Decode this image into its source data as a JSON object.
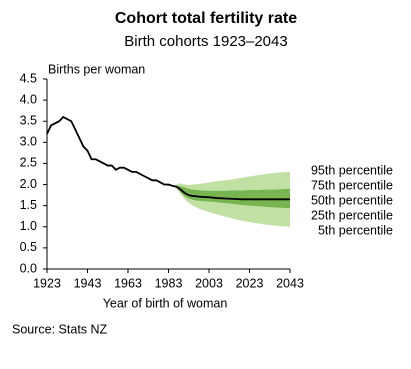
{
  "chart_data": {
    "type": "line",
    "title": "Cohort total fertility rate",
    "subtitle": "Birth cohorts 1923–2043",
    "y_label": "Births per woman",
    "x_label": "Year of birth of woman",
    "source": "Source: Stats NZ",
    "x": [
      1923,
      1925,
      1927,
      1929,
      1931,
      1933,
      1935,
      1937,
      1939,
      1941,
      1943,
      1945,
      1947,
      1949,
      1951,
      1953,
      1955,
      1957,
      1959,
      1961,
      1963,
      1965,
      1967,
      1969,
      1971,
      1973,
      1975,
      1977,
      1979,
      1981,
      1983,
      1985,
      1987,
      1989,
      1991,
      1993,
      1995,
      1997,
      1999,
      2003,
      2007,
      2011,
      2015,
      2019,
      2023,
      2027,
      2031,
      2035,
      2039,
      2043
    ],
    "series": [
      {
        "name": "95th percentile",
        "color": "#c0e0a4",
        "values": [
          null,
          null,
          null,
          null,
          null,
          null,
          null,
          null,
          null,
          null,
          null,
          null,
          null,
          null,
          null,
          null,
          null,
          null,
          null,
          null,
          null,
          null,
          null,
          null,
          null,
          null,
          null,
          null,
          null,
          null,
          null,
          1.97,
          2.0,
          2.03,
          2.0,
          1.99,
          2.0,
          2.01,
          2.02,
          2.05,
          2.08,
          2.1,
          2.13,
          2.16,
          2.19,
          2.22,
          2.25,
          2.27,
          2.29,
          2.3
        ]
      },
      {
        "name": "75th percentile",
        "color": "#78b450",
        "values": [
          null,
          null,
          null,
          null,
          null,
          null,
          null,
          null,
          null,
          null,
          null,
          null,
          null,
          null,
          null,
          null,
          null,
          null,
          null,
          null,
          null,
          null,
          null,
          null,
          null,
          null,
          null,
          null,
          null,
          null,
          null,
          1.97,
          1.97,
          1.96,
          1.93,
          1.9,
          1.88,
          1.87,
          1.86,
          1.85,
          1.85,
          1.85,
          1.86,
          1.86,
          1.87,
          1.87,
          1.88,
          1.88,
          1.89,
          1.9
        ]
      },
      {
        "name": "50th percentile",
        "color": "#000000",
        "values": [
          3.2,
          3.4,
          3.45,
          3.5,
          3.6,
          3.55,
          3.5,
          3.3,
          3.1,
          2.9,
          2.8,
          2.6,
          2.6,
          2.55,
          2.5,
          2.45,
          2.45,
          2.35,
          2.4,
          2.4,
          2.35,
          2.3,
          2.3,
          2.25,
          2.2,
          2.15,
          2.1,
          2.1,
          2.05,
          2.0,
          2.0,
          1.97,
          1.95,
          1.88,
          1.8,
          1.75,
          1.73,
          1.72,
          1.71,
          1.7,
          1.68,
          1.67,
          1.66,
          1.65,
          1.65,
          1.65,
          1.65,
          1.65,
          1.65,
          1.65
        ]
      },
      {
        "name": "25th percentile",
        "color": "#78b450",
        "values": [
          null,
          null,
          null,
          null,
          null,
          null,
          null,
          null,
          null,
          null,
          null,
          null,
          null,
          null,
          null,
          null,
          null,
          null,
          null,
          null,
          null,
          null,
          null,
          null,
          null,
          null,
          null,
          null,
          null,
          null,
          null,
          1.97,
          1.93,
          1.82,
          1.72,
          1.67,
          1.64,
          1.62,
          1.61,
          1.6,
          1.58,
          1.56,
          1.54,
          1.52,
          1.5,
          1.49,
          1.47,
          1.46,
          1.45,
          1.44
        ]
      },
      {
        "name": "5th percentile",
        "color": "#c0e0a4",
        "values": [
          null,
          null,
          null,
          null,
          null,
          null,
          null,
          null,
          null,
          null,
          null,
          null,
          null,
          null,
          null,
          null,
          null,
          null,
          null,
          null,
          null,
          null,
          null,
          null,
          null,
          null,
          null,
          null,
          null,
          null,
          null,
          1.97,
          1.9,
          1.77,
          1.65,
          1.57,
          1.5,
          1.45,
          1.41,
          1.35,
          1.29,
          1.24,
          1.19,
          1.15,
          1.11,
          1.08,
          1.05,
          1.03,
          1.01,
          1.0
        ]
      }
    ],
    "xlim": [
      1923,
      2043
    ],
    "xticks": [
      1923,
      1943,
      1963,
      1983,
      2003,
      2023,
      2043
    ],
    "ylim": [
      0,
      4.5
    ],
    "yticks": [
      {
        "value": 0,
        "label": "0.0"
      },
      0.5,
      {
        "value": 1,
        "label": "1.0"
      },
      1.5,
      {
        "value": 2,
        "label": "2.0"
      },
      2.5,
      {
        "value": 3,
        "label": "3.0"
      },
      3.5,
      {
        "value": 4,
        "label": "4.0"
      },
      4.5
    ]
  }
}
